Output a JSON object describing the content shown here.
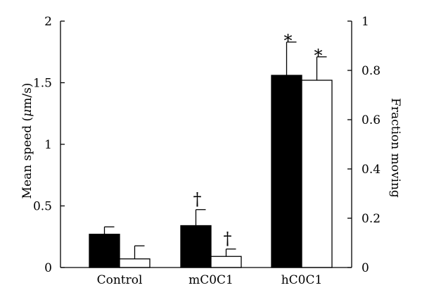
{
  "chart_data": {
    "type": "bar",
    "title": "",
    "xlabel": "",
    "ylabel": "Mean speed (μm/s)",
    "ylabel_parts": [
      "Mean speed (",
      "μ",
      "m/s)"
    ],
    "y2label": "Fraction moving",
    "categories": [
      "Control",
      "mC0C1",
      "hC0C1"
    ],
    "ylim": [
      0,
      2
    ],
    "y2lim": [
      0,
      1
    ],
    "yticks": [
      0,
      0.5,
      1,
      1.5,
      2
    ],
    "ytick_labels": [
      "0",
      "0.5",
      "1",
      "1.5",
      "2"
    ],
    "y2ticks": [
      0,
      0.2,
      0.4,
      0.6,
      0.8,
      1
    ],
    "y2tick_labels": [
      "0",
      "0.2",
      "0.4",
      "0.6",
      "0.8",
      "1"
    ],
    "grid": false,
    "series": [
      {
        "axis": "left",
        "color": "#000000",
        "fill": "solid",
        "values": [
          0.27,
          0.34,
          1.56
        ],
        "errors": [
          0.06,
          0.13,
          0.27
        ],
        "markers": [
          "",
          "†",
          "*"
        ]
      },
      {
        "axis": "right",
        "color": "#ffffff",
        "fill": "open",
        "values": [
          0.035,
          0.045,
          0.76
        ],
        "errors": [
          0.053,
          0.03,
          0.095
        ],
        "markers": [
          "",
          "†",
          "*"
        ]
      }
    ]
  }
}
